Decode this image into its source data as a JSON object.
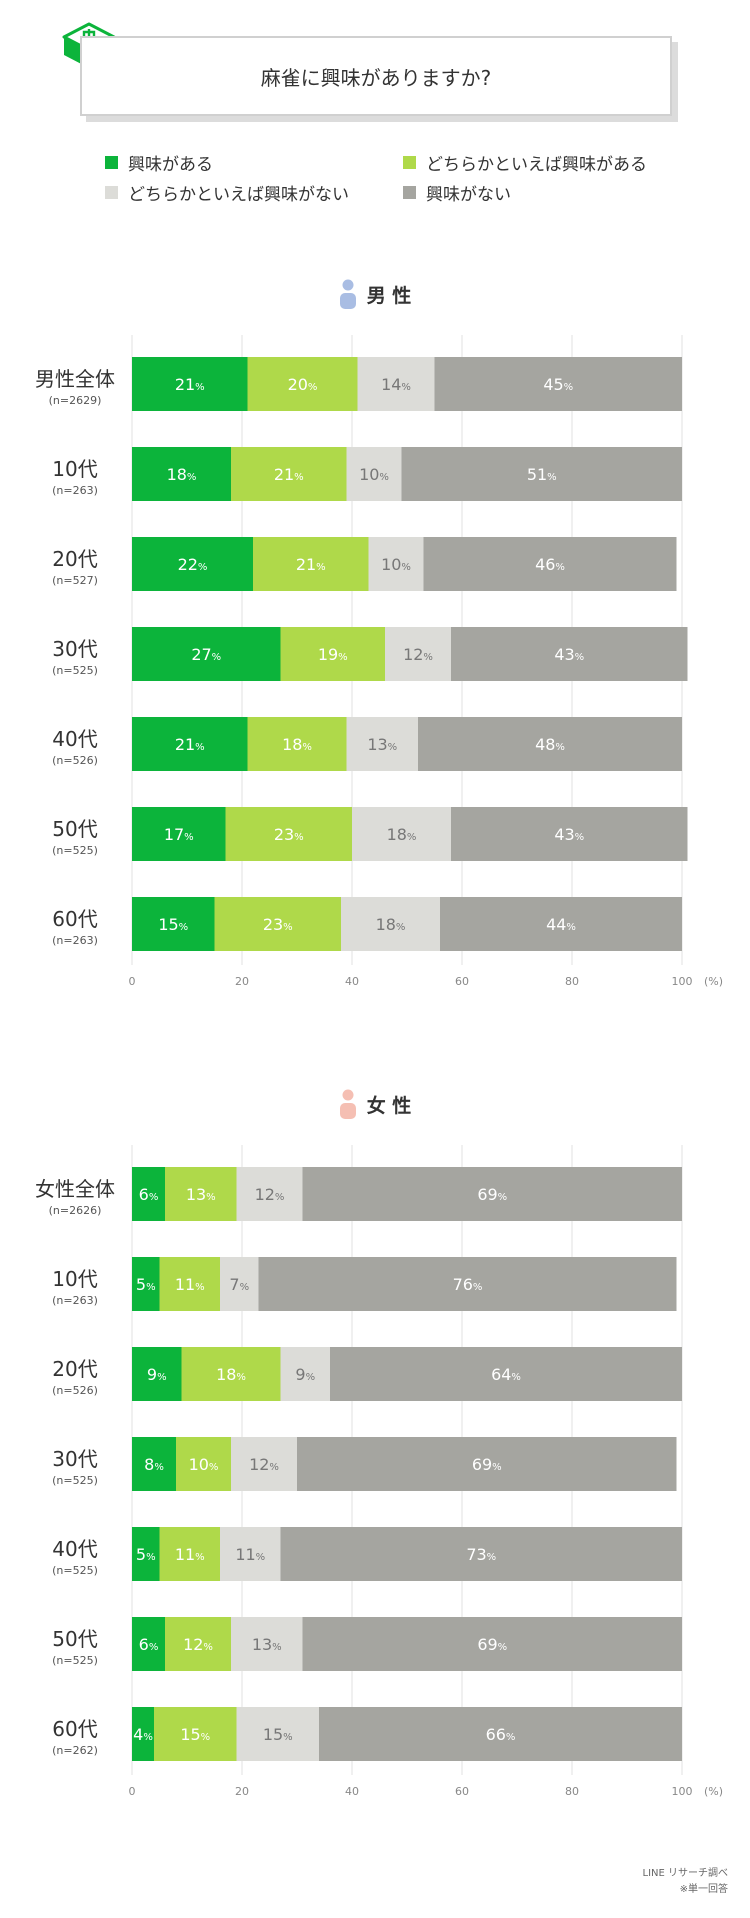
{
  "header": {
    "title": "麻雀に興味がありますか?"
  },
  "legend": [
    {
      "label": "興味がある",
      "color": "#0cb43b"
    },
    {
      "label": "どちらかといえば興味がある",
      "color": "#afd94a"
    },
    {
      "label": "どちらかといえば興味がない",
      "color": "#dcdcd8"
    },
    {
      "label": "興味がない",
      "color": "#a5a5a0"
    }
  ],
  "sections": [
    {
      "heading": "男 性",
      "icon_color": "#a9bde3"
    },
    {
      "heading": "女 性",
      "icon_color": "#f5bfb3"
    }
  ],
  "chart_data": [
    {
      "type": "bar",
      "orientation": "horizontal",
      "stacked": true,
      "title": "男 性",
      "categories": [
        "男性全体",
        "10代",
        "20代",
        "30代",
        "40代",
        "50代",
        "60代"
      ],
      "sample_sizes": [
        "(n=2629)",
        "(n=263)",
        "(n=527)",
        "(n=525)",
        "(n=526)",
        "(n=525)",
        "(n=263)"
      ],
      "series": [
        {
          "name": "興味がある",
          "values": [
            21,
            18,
            22,
            27,
            21,
            17,
            15
          ]
        },
        {
          "name": "どちらかといえば興味がある",
          "values": [
            20,
            21,
            21,
            19,
            18,
            23,
            23
          ]
        },
        {
          "name": "どちらかといえば興味がない",
          "values": [
            14,
            10,
            10,
            12,
            13,
            18,
            18
          ]
        },
        {
          "name": "興味がない",
          "values": [
            45,
            51,
            46,
            43,
            48,
            43,
            44
          ]
        }
      ],
      "value_suffix": "%",
      "xlim": [
        0,
        100
      ],
      "xticks": [
        0,
        20,
        40,
        60,
        80,
        100
      ],
      "xunit": "(%)",
      "grid": true
    },
    {
      "type": "bar",
      "orientation": "horizontal",
      "stacked": true,
      "title": "女 性",
      "categories": [
        "女性全体",
        "10代",
        "20代",
        "30代",
        "40代",
        "50代",
        "60代"
      ],
      "sample_sizes": [
        "(n=2626)",
        "(n=263)",
        "(n=526)",
        "(n=525)",
        "(n=525)",
        "(n=525)",
        "(n=262)"
      ],
      "series": [
        {
          "name": "興味がある",
          "values": [
            6,
            5,
            9,
            8,
            5,
            6,
            4
          ]
        },
        {
          "name": "どちらかといえば興味がある",
          "values": [
            13,
            11,
            18,
            10,
            11,
            12,
            15
          ]
        },
        {
          "name": "どちらかといえば興味がない",
          "values": [
            12,
            7,
            9,
            12,
            11,
            13,
            15
          ]
        },
        {
          "name": "興味がない",
          "values": [
            69,
            76,
            64,
            69,
            73,
            69,
            66
          ]
        }
      ],
      "value_suffix": "%",
      "xlim": [
        0,
        100
      ],
      "xticks": [
        0,
        20,
        40,
        60,
        80,
        100
      ],
      "xunit": "(%)",
      "grid": true
    }
  ],
  "footer": {
    "source": "LINE リサーチ調べ",
    "note": "※単一回答"
  }
}
